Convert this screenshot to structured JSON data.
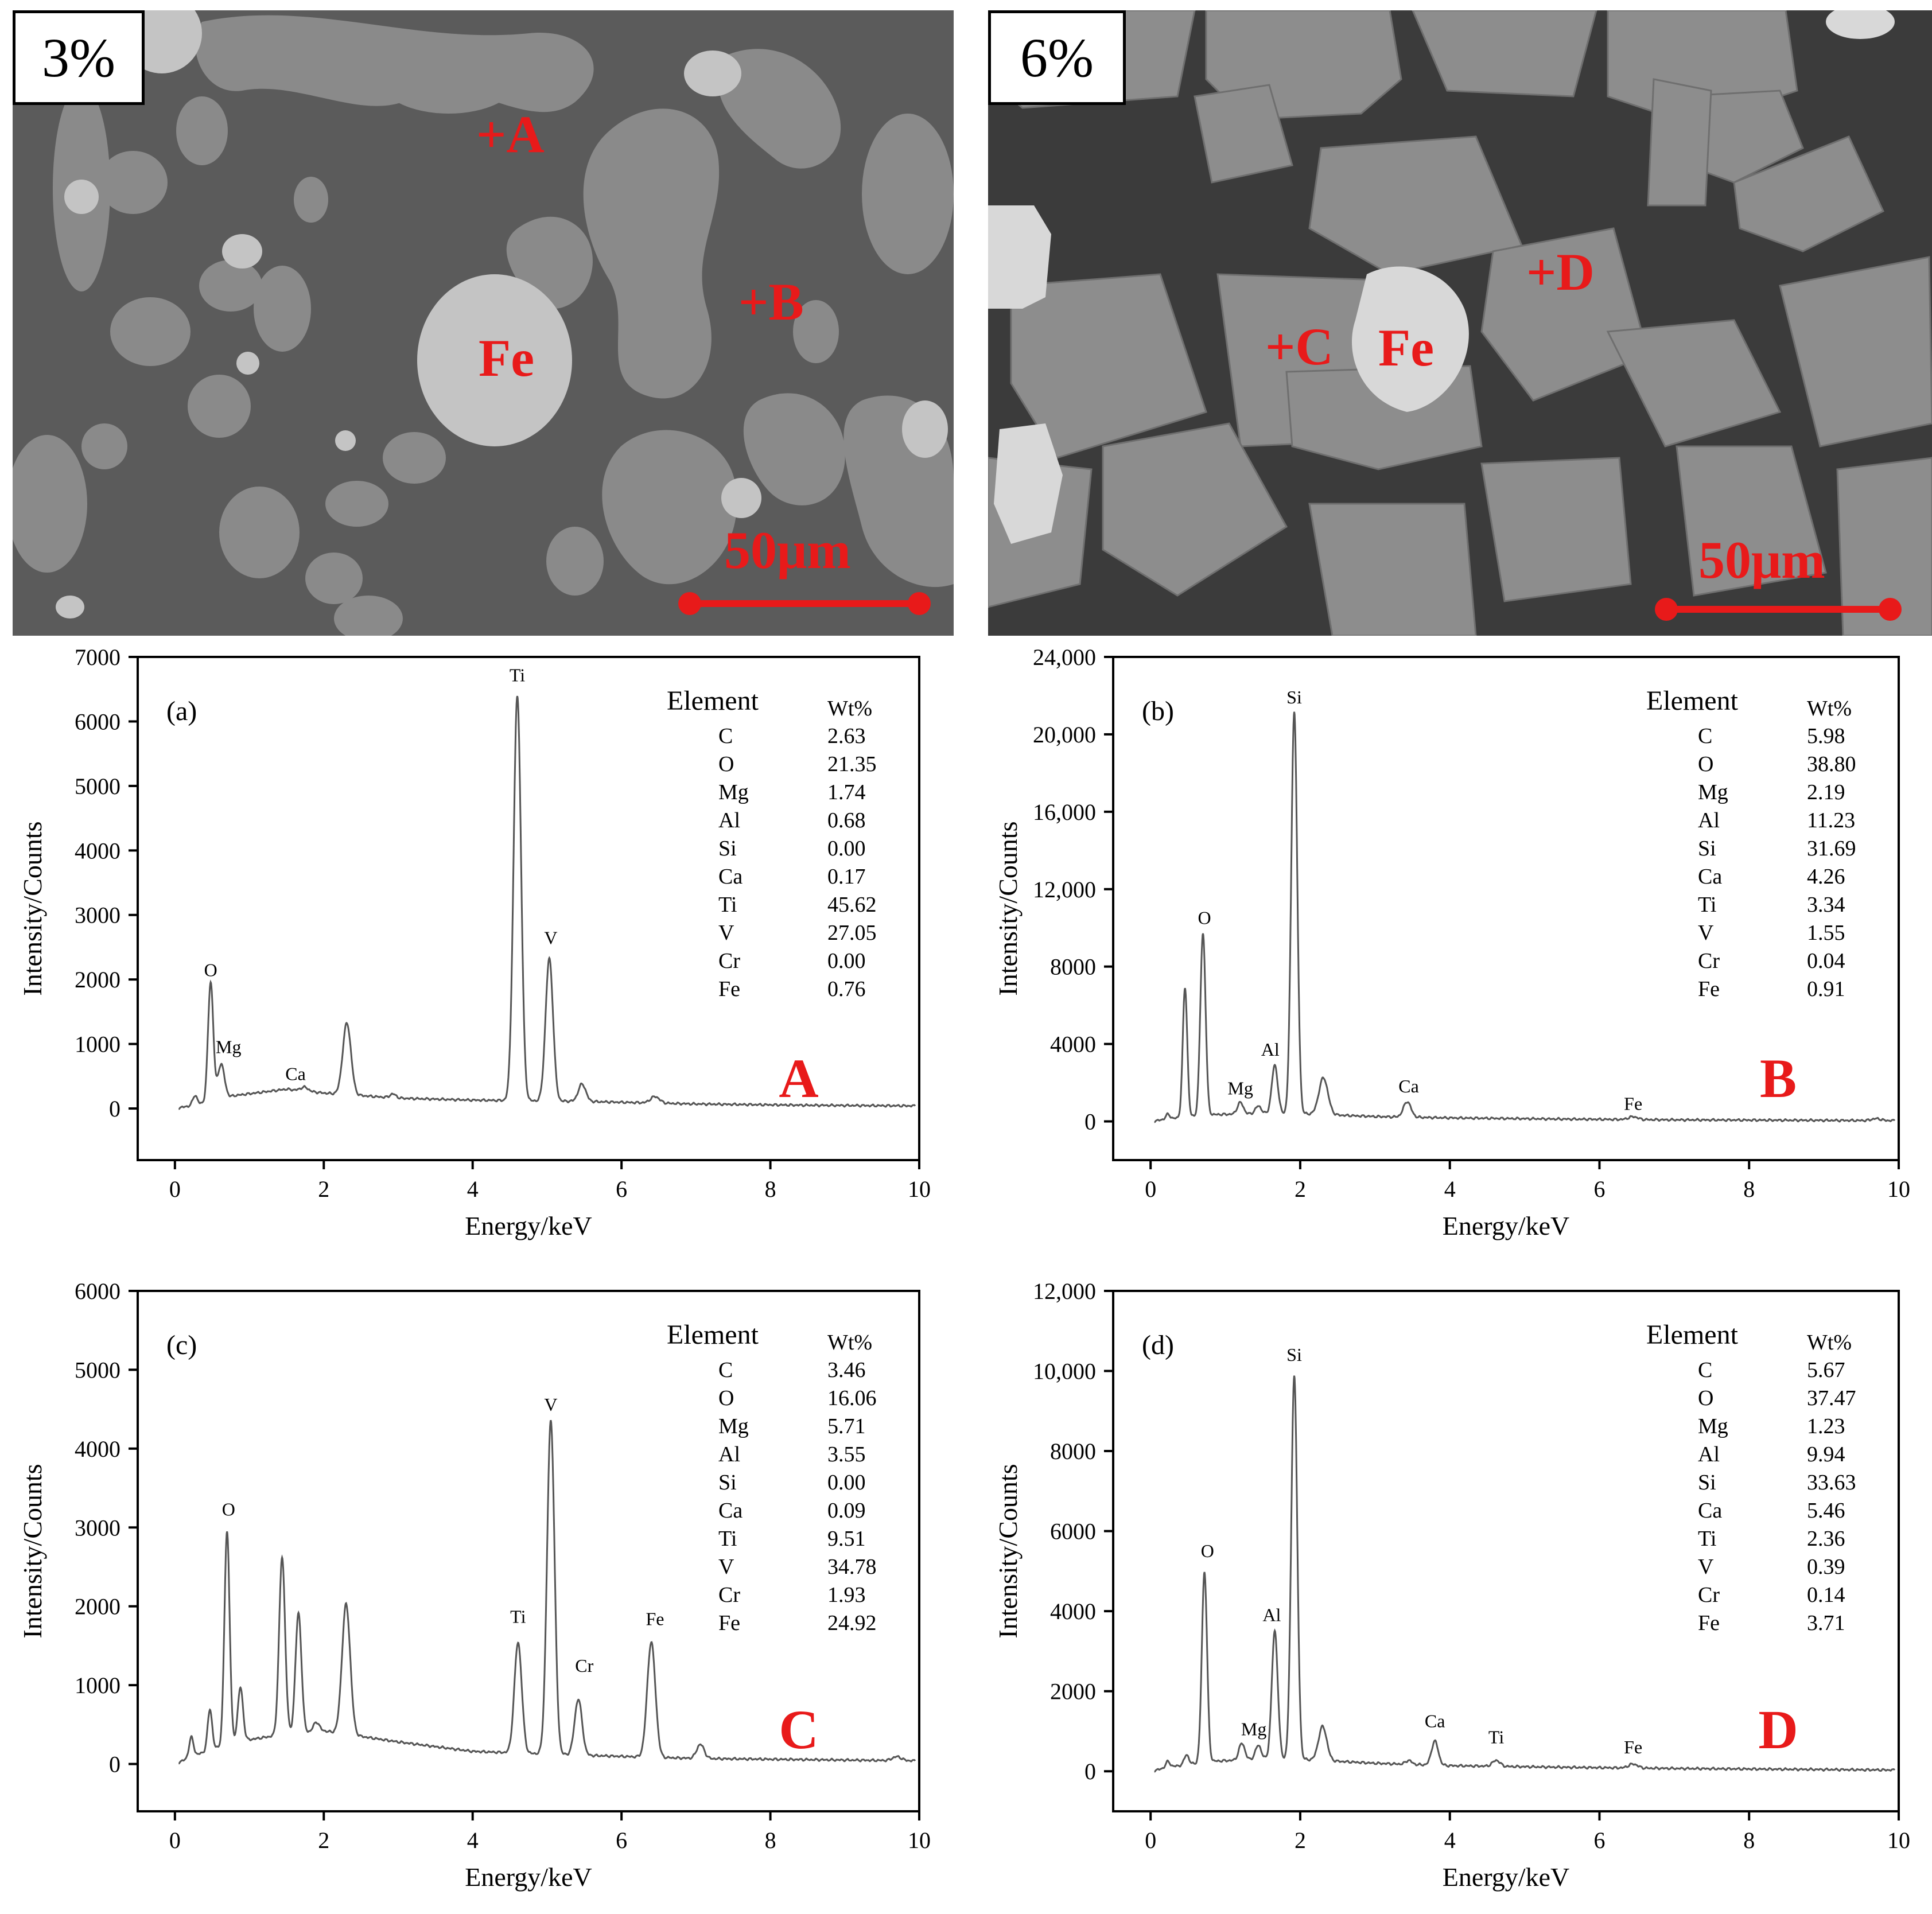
{
  "sem_images": [
    {
      "tag": "3%",
      "points": [
        "+A",
        "+B"
      ],
      "phase_label": "Fe",
      "scale_label": "50μm",
      "background": "#5b5b5b",
      "grain_color": "#8a8a8a",
      "inclusion_color": "#c4c4c4"
    },
    {
      "tag": "6%",
      "points": [
        "+C",
        "+D"
      ],
      "phase_label": "Fe",
      "scale_label": "50μm",
      "background": "#3b3b3b",
      "grain_color": "#8d8d8d",
      "inclusion_color": "#d8d8d8"
    }
  ],
  "colors": {
    "marker_red": "#e81a1a",
    "spectrum_line": "#555555",
    "axis": "#000000"
  },
  "chart_data": [
    {
      "type": "line",
      "panel_label": "(a)",
      "point_label": "A",
      "xlabel": "Energy/keV",
      "ylabel": "Intensity/Counts",
      "xlim": [
        -0.5,
        10
      ],
      "ylim": [
        -800,
        7000
      ],
      "x_ticks": [
        "0",
        "2",
        "4",
        "6",
        "8",
        "10"
      ],
      "y_ticks": [
        {
          "value": 0,
          "label": "0"
        },
        {
          "value": 1000,
          "label": "1000"
        },
        {
          "value": 2000,
          "label": "2000"
        },
        {
          "value": 3000,
          "label": "3000"
        },
        {
          "value": 4000,
          "label": "4000"
        },
        {
          "value": 5000,
          "label": "5000"
        },
        {
          "value": 6000,
          "label": "6000"
        },
        {
          "value": 7000,
          "label": "7000"
        }
      ],
      "baseline": [
        [
          0,
          0
        ],
        [
          0.3,
          60
        ],
        [
          0.8,
          200
        ],
        [
          1.5,
          300
        ],
        [
          2.0,
          240
        ],
        [
          3.0,
          160
        ],
        [
          4.0,
          130
        ],
        [
          5.5,
          110
        ],
        [
          7.0,
          70
        ],
        [
          8.5,
          50
        ],
        [
          10,
          40
        ]
      ],
      "peaks": [
        {
          "x": 0.27,
          "y": 150,
          "w": 0.03
        },
        {
          "x": 0.48,
          "y": 1850,
          "w": 0.035
        },
        {
          "x": 0.62,
          "y": 540,
          "w": 0.045
        },
        {
          "x": 1.74,
          "y": 60,
          "w": 0.05
        },
        {
          "x": 2.31,
          "y": 1110,
          "w": 0.055
        },
        {
          "x": 2.93,
          "y": 60,
          "w": 0.04
        },
        {
          "x": 4.6,
          "y": 6280,
          "w": 0.05
        },
        {
          "x": 5.03,
          "y": 2210,
          "w": 0.05
        },
        {
          "x": 5.47,
          "y": 270,
          "w": 0.05
        },
        {
          "x": 6.45,
          "y": 100,
          "w": 0.06
        }
      ],
      "peak_labels": [
        {
          "text": "O",
          "x": 0.48,
          "y": 2050
        },
        {
          "text": "Mg",
          "x": 0.72,
          "y": 860
        },
        {
          "text": "Ca",
          "x": 1.62,
          "y": 440
        },
        {
          "text": "Ti",
          "x": 4.6,
          "y": 6620
        },
        {
          "text": "V",
          "x": 5.05,
          "y": 2550
        }
      ],
      "table_header": [
        "Element",
        "Wt%"
      ],
      "table": [
        [
          "C",
          "2.63"
        ],
        [
          "O",
          "21.35"
        ],
        [
          "Mg",
          "1.74"
        ],
        [
          "Al",
          "0.68"
        ],
        [
          "Si",
          "0.00"
        ],
        [
          "Ca",
          "0.17"
        ],
        [
          "Ti",
          "45.62"
        ],
        [
          "V",
          "27.05"
        ],
        [
          "Cr",
          "0.00"
        ],
        [
          "Fe",
          "0.76"
        ]
      ]
    },
    {
      "type": "line",
      "panel_label": "(b)",
      "point_label": "B",
      "xlabel": "Energy/keV",
      "ylabel": "Intensity/Counts",
      "xlim": [
        -0.5,
        10
      ],
      "ylim": [
        -2000,
        24000
      ],
      "x_ticks": [
        "0",
        "2",
        "4",
        "6",
        "8",
        "10"
      ],
      "y_ticks": [
        {
          "value": 0,
          "label": "0"
        },
        {
          "value": 4000,
          "label": "4000"
        },
        {
          "value": 8000,
          "label": "8000"
        },
        {
          "value": 12000,
          "label": "12,000"
        },
        {
          "value": 16000,
          "label": "16,000"
        },
        {
          "value": 20000,
          "label": "20,000"
        },
        {
          "value": 24000,
          "label": "24,000"
        }
      ],
      "baseline": [
        [
          0,
          0
        ],
        [
          0.3,
          150
        ],
        [
          0.8,
          350
        ],
        [
          1.5,
          400
        ],
        [
          2.0,
          400
        ],
        [
          3.0,
          250
        ],
        [
          4.0,
          180
        ],
        [
          5.5,
          120
        ],
        [
          7.0,
          80
        ],
        [
          8.5,
          60
        ],
        [
          10,
          40
        ]
      ],
      "peaks": [
        {
          "x": 0.23,
          "y": 250,
          "w": 0.03
        },
        {
          "x": 0.46,
          "y": 6700,
          "w": 0.03
        },
        {
          "x": 0.7,
          "y": 9400,
          "w": 0.035
        },
        {
          "x": 1.2,
          "y": 600,
          "w": 0.04
        },
        {
          "x": 1.44,
          "y": 400,
          "w": 0.04
        },
        {
          "x": 1.66,
          "y": 2500,
          "w": 0.04
        },
        {
          "x": 1.92,
          "y": 20800,
          "w": 0.04
        },
        {
          "x": 2.31,
          "y": 1900,
          "w": 0.06
        },
        {
          "x": 3.43,
          "y": 800,
          "w": 0.05
        },
        {
          "x": 6.45,
          "y": 150,
          "w": 0.06
        },
        {
          "x": 9.7,
          "y": 100,
          "w": 0.06
        }
      ],
      "peak_labels": [
        {
          "text": "O",
          "x": 0.72,
          "y": 10200
        },
        {
          "text": "Mg",
          "x": 1.2,
          "y": 1400
        },
        {
          "text": "Al",
          "x": 1.6,
          "y": 3400
        },
        {
          "text": "Si",
          "x": 1.92,
          "y": 21600
        },
        {
          "text": "Ca",
          "x": 3.45,
          "y": 1500
        },
        {
          "text": "Fe",
          "x": 6.45,
          "y": 600
        }
      ],
      "table_header": [
        "Element",
        "Wt%"
      ],
      "table": [
        [
          "C",
          "5.98"
        ],
        [
          "O",
          "38.80"
        ],
        [
          "Mg",
          "2.19"
        ],
        [
          "Al",
          "11.23"
        ],
        [
          "Si",
          "31.69"
        ],
        [
          "Ca",
          "4.26"
        ],
        [
          "Ti",
          "3.34"
        ],
        [
          "V",
          "1.55"
        ],
        [
          "Cr",
          "0.04"
        ],
        [
          "Fe",
          "0.91"
        ]
      ]
    },
    {
      "type": "line",
      "panel_label": "(c)",
      "point_label": "C",
      "xlabel": "Energy/keV",
      "ylabel": "Intensity/Counts",
      "xlim": [
        -0.5,
        10
      ],
      "ylim": [
        -600,
        6000
      ],
      "x_ticks": [
        "0",
        "2",
        "4",
        "6",
        "8",
        "10"
      ],
      "y_ticks": [
        {
          "value": 0,
          "label": "0"
        },
        {
          "value": 1000,
          "label": "1000"
        },
        {
          "value": 2000,
          "label": "2000"
        },
        {
          "value": 3000,
          "label": "3000"
        },
        {
          "value": 4000,
          "label": "4000"
        },
        {
          "value": 5000,
          "label": "5000"
        },
        {
          "value": 6000,
          "label": "6000"
        }
      ],
      "baseline": [
        [
          0,
          0
        ],
        [
          0.3,
          120
        ],
        [
          0.8,
          280
        ],
        [
          1.5,
          380
        ],
        [
          2.0,
          420
        ],
        [
          3.0,
          280
        ],
        [
          4.0,
          160
        ],
        [
          5.5,
          110
        ],
        [
          7.0,
          70
        ],
        [
          8.5,
          55
        ],
        [
          10,
          40
        ]
      ],
      "peaks": [
        {
          "x": 0.22,
          "y": 250,
          "w": 0.03
        },
        {
          "x": 0.47,
          "y": 520,
          "w": 0.03
        },
        {
          "x": 0.7,
          "y": 2700,
          "w": 0.035
        },
        {
          "x": 0.88,
          "y": 680,
          "w": 0.035
        },
        {
          "x": 1.44,
          "y": 2250,
          "w": 0.04
        },
        {
          "x": 1.66,
          "y": 1520,
          "w": 0.04
        },
        {
          "x": 1.9,
          "y": 120,
          "w": 0.04
        },
        {
          "x": 2.3,
          "y": 1650,
          "w": 0.055
        },
        {
          "x": 4.61,
          "y": 1400,
          "w": 0.05
        },
        {
          "x": 5.05,
          "y": 4230,
          "w": 0.05
        },
        {
          "x": 5.42,
          "y": 710,
          "w": 0.05
        },
        {
          "x": 6.4,
          "y": 1460,
          "w": 0.055
        },
        {
          "x": 7.06,
          "y": 180,
          "w": 0.05
        },
        {
          "x": 9.7,
          "y": 50,
          "w": 0.06
        }
      ],
      "peak_labels": [
        {
          "text": "O",
          "x": 0.72,
          "y": 3150
        },
        {
          "text": "Ti",
          "x": 4.61,
          "y": 1790
        },
        {
          "text": "V",
          "x": 5.05,
          "y": 4480
        },
        {
          "text": "Cr",
          "x": 5.5,
          "y": 1170
        },
        {
          "text": "Fe",
          "x": 6.45,
          "y": 1760
        }
      ],
      "table_header": [
        "Element",
        "Wt%"
      ],
      "table": [
        [
          "C",
          "3.46"
        ],
        [
          "O",
          "16.06"
        ],
        [
          "Mg",
          "5.71"
        ],
        [
          "Al",
          "3.55"
        ],
        [
          "Si",
          "0.00"
        ],
        [
          "Ca",
          "0.09"
        ],
        [
          "Ti",
          "9.51"
        ],
        [
          "V",
          "34.78"
        ],
        [
          "Cr",
          "1.93"
        ],
        [
          "Fe",
          "24.92"
        ]
      ]
    },
    {
      "type": "line",
      "panel_label": "(d)",
      "point_label": "D",
      "xlabel": "Energy/keV",
      "ylabel": "Intensity/Counts",
      "xlim": [
        -0.5,
        10
      ],
      "ylim": [
        -1000,
        12000
      ],
      "x_ticks": [
        "0",
        "2",
        "4",
        "6",
        "8",
        "10"
      ],
      "y_ticks": [
        {
          "value": 0,
          "label": "0"
        },
        {
          "value": 2000,
          "label": "2000"
        },
        {
          "value": 4000,
          "label": "4000"
        },
        {
          "value": 6000,
          "label": "6000"
        },
        {
          "value": 8000,
          "label": "8000"
        },
        {
          "value": 10000,
          "label": "10,000"
        },
        {
          "value": 12000,
          "label": "12,000"
        }
      ],
      "baseline": [
        [
          0,
          0
        ],
        [
          0.3,
          120
        ],
        [
          0.8,
          250
        ],
        [
          1.5,
          300
        ],
        [
          2.0,
          300
        ],
        [
          3.0,
          200
        ],
        [
          4.0,
          140
        ],
        [
          5.5,
          100
        ],
        [
          7.0,
          70
        ],
        [
          8.5,
          50
        ],
        [
          10,
          30
        ]
      ],
      "peaks": [
        {
          "x": 0.23,
          "y": 150,
          "w": 0.03
        },
        {
          "x": 0.48,
          "y": 250,
          "w": 0.03
        },
        {
          "x": 0.72,
          "y": 4750,
          "w": 0.035
        },
        {
          "x": 1.22,
          "y": 420,
          "w": 0.04
        },
        {
          "x": 1.44,
          "y": 350,
          "w": 0.04
        },
        {
          "x": 1.66,
          "y": 3200,
          "w": 0.04
        },
        {
          "x": 1.92,
          "y": 9600,
          "w": 0.04
        },
        {
          "x": 2.3,
          "y": 850,
          "w": 0.055
        },
        {
          "x": 3.45,
          "y": 100,
          "w": 0.04
        },
        {
          "x": 3.8,
          "y": 600,
          "w": 0.045
        },
        {
          "x": 4.62,
          "y": 150,
          "w": 0.05
        },
        {
          "x": 6.45,
          "y": 100,
          "w": 0.06
        }
      ],
      "peak_labels": [
        {
          "text": "O",
          "x": 0.76,
          "y": 5350
        },
        {
          "text": "Mg",
          "x": 1.38,
          "y": 900
        },
        {
          "text": "Al",
          "x": 1.62,
          "y": 3750
        },
        {
          "text": "Si",
          "x": 1.92,
          "y": 10250
        },
        {
          "text": "Ca",
          "x": 3.8,
          "y": 1100
        },
        {
          "text": "Ti",
          "x": 4.62,
          "y": 700
        },
        {
          "text": "Fe",
          "x": 6.45,
          "y": 450
        }
      ],
      "table_header": [
        "Element",
        "Wt%"
      ],
      "table": [
        [
          "C",
          "5.67"
        ],
        [
          "O",
          "37.47"
        ],
        [
          "Mg",
          "1.23"
        ],
        [
          "Al",
          "9.94"
        ],
        [
          "Si",
          "33.63"
        ],
        [
          "Ca",
          "5.46"
        ],
        [
          "Ti",
          "2.36"
        ],
        [
          "V",
          "0.39"
        ],
        [
          "Cr",
          "0.14"
        ],
        [
          "Fe",
          "3.71"
        ]
      ]
    }
  ]
}
